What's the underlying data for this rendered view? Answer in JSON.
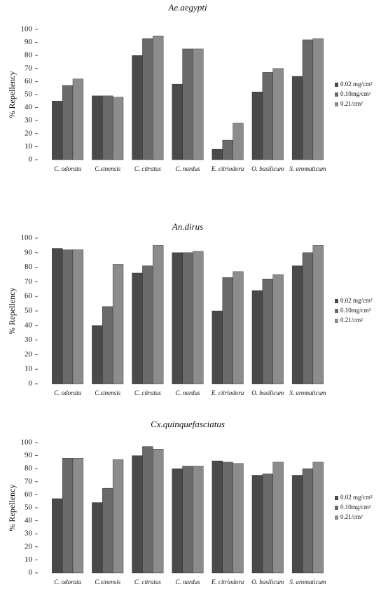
{
  "chart_data": [
    {
      "type": "bar",
      "title": "Ae.aegypti",
      "y_label": "% Repellency",
      "categories": [
        "C. odorata",
        "C.sinensis",
        "C. citratus",
        "C. nardus",
        "E. citriodora",
        "O. basilicum",
        "S. aromaticum"
      ],
      "series": [
        {
          "name": "0.02 mg/cm²",
          "color": "#4a4a4a",
          "values": [
            45,
            49,
            80,
            58,
            8,
            52,
            64
          ]
        },
        {
          "name": "0.10mg/cm²",
          "color": "#6a6a6a",
          "values": [
            57,
            49,
            93,
            85,
            15,
            67,
            92
          ]
        },
        {
          "name": "0.21/cm²",
          "color": "#8c8c8c",
          "values": [
            62,
            48,
            95,
            85,
            28,
            70,
            93
          ]
        }
      ],
      "ylim": [
        0,
        100
      ],
      "yticks": [
        0,
        10,
        20,
        30,
        40,
        50,
        60,
        70,
        80,
        90,
        100
      ]
    },
    {
      "type": "bar",
      "title": "An.dirus",
      "y_label": "% Repellency",
      "categories": [
        "C. odorata",
        "C.sinensis",
        "C. citratus",
        "C. nardus",
        "E. citriodora",
        "O. basilicum",
        "S. aromaticum"
      ],
      "series": [
        {
          "name": "0.02 mg/cm²",
          "color": "#4a4a4a",
          "values": [
            93,
            40,
            76,
            90,
            50,
            64,
            81
          ]
        },
        {
          "name": "0.10mg/cm²",
          "color": "#6a6a6a",
          "values": [
            92,
            53,
            81,
            90,
            73,
            72,
            90
          ]
        },
        {
          "name": "0.21/cm²",
          "color": "#8c8c8c",
          "values": [
            92,
            82,
            95,
            91,
            77,
            75,
            95
          ]
        }
      ],
      "ylim": [
        0,
        100
      ],
      "yticks": [
        0,
        10,
        20,
        30,
        40,
        50,
        60,
        70,
        80,
        90,
        100
      ]
    },
    {
      "type": "bar",
      "title": "Cx.quinquefasciatus",
      "y_label": "% Repellency",
      "categories": [
        "C. odorata",
        "C.sinensis",
        "C. citratus",
        "C. nardus",
        "E. citriodora",
        "O. basilicum",
        "S. aromaticum"
      ],
      "series": [
        {
          "name": "0.02 mg/cm²",
          "color": "#4a4a4a",
          "values": [
            57,
            54,
            90,
            80,
            86,
            75,
            75
          ]
        },
        {
          "name": "0.10mg/cm²",
          "color": "#6a6a6a",
          "values": [
            88,
            65,
            97,
            82,
            85,
            76,
            80
          ]
        },
        {
          "name": "0.21/cm²",
          "color": "#8c8c8c",
          "values": [
            88,
            87,
            95,
            82,
            84,
            85,
            85
          ]
        }
      ],
      "ylim": [
        0,
        100
      ],
      "yticks": [
        0,
        10,
        20,
        30,
        40,
        50,
        60,
        70,
        80,
        90,
        100
      ]
    }
  ]
}
